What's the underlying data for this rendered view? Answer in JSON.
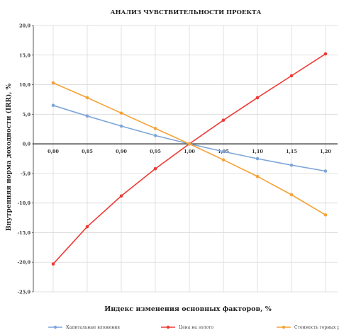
{
  "chart_data": {
    "type": "line",
    "title": "АНАЛИЗ ЧУВСТВИТЕЛЬНОСТИ ПРОЕКТА",
    "xlabel": "Индекс изменения основных факторов, %",
    "ylabel": "Внутренняя норма доходности (IRR), %",
    "x": [
      0.8,
      0.85,
      0.9,
      0.95,
      1.0,
      1.05,
      1.1,
      1.15,
      1.2
    ],
    "x_tick_labels": [
      "0,80",
      "0,85",
      "0,90",
      "0,95",
      "1,00",
      "1,05",
      "1,10",
      "1,15",
      "1,20"
    ],
    "y_tick_labels": [
      "20,0",
      "15,0",
      "10,0",
      "5,0",
      "0,0",
      "-5,0",
      "-10,0",
      "-15,0",
      "-20,0",
      "-25,0"
    ],
    "y_ticks": [
      20,
      15,
      10,
      5,
      0,
      -5,
      -10,
      -15,
      -20,
      -25
    ],
    "ylim": [
      -25,
      20
    ],
    "xlim": [
      0.8,
      1.2
    ],
    "grid": true,
    "legend_position": "bottom",
    "series": [
      {
        "name": "Капитальные вложения",
        "color": "#7ea6d8",
        "values": [
          6.5,
          4.7,
          3.0,
          1.4,
          0.0,
          -1.3,
          -2.5,
          -3.6,
          -4.6
        ]
      },
      {
        "name": "Цена на золото",
        "color": "#ee3b36",
        "values": [
          -20.3,
          -14.0,
          -8.8,
          -4.2,
          0.0,
          4.0,
          7.8,
          11.5,
          15.2
        ]
      },
      {
        "name": "Стоимость горных работ",
        "color": "#f5a236",
        "values": [
          10.3,
          7.8,
          5.2,
          2.6,
          0.0,
          -2.7,
          -5.5,
          -8.6,
          -12.0
        ]
      }
    ]
  }
}
